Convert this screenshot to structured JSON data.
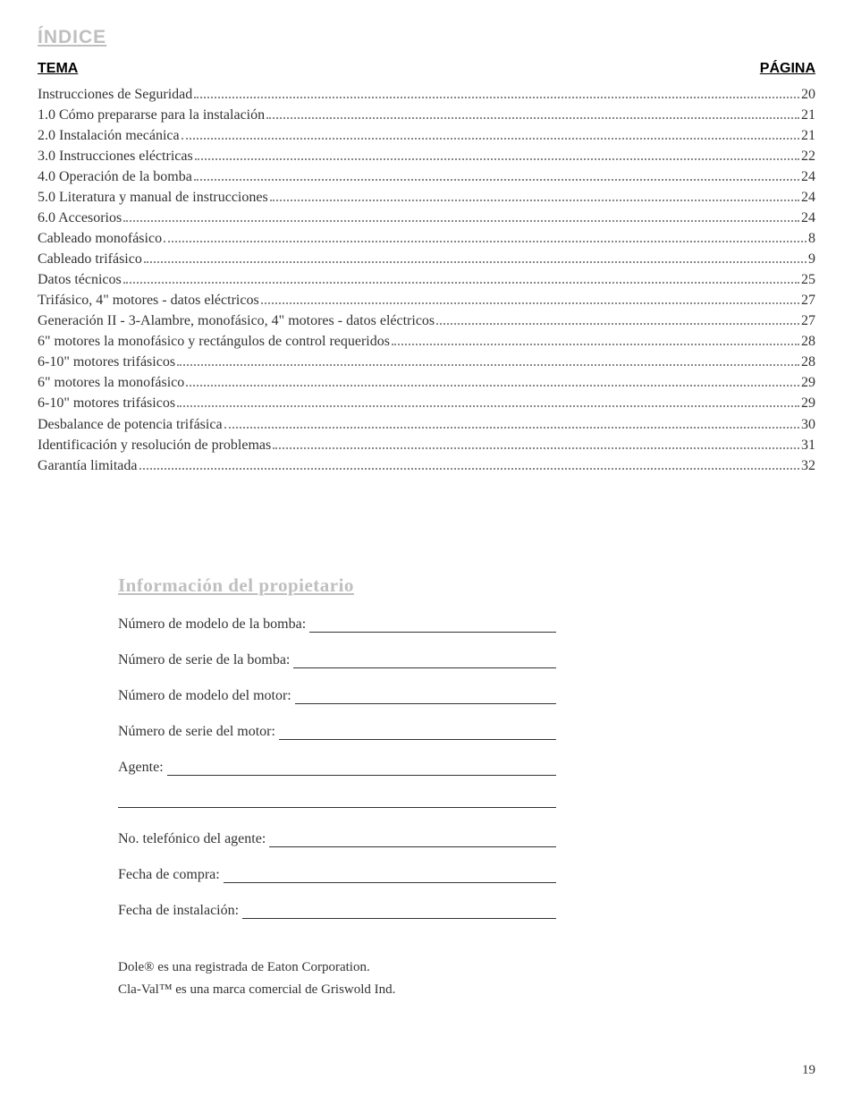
{
  "title": "ÍNDICE",
  "toc_header_left": "TEMA",
  "toc_header_right": "PÁGINA",
  "toc": [
    {
      "label": "Instrucciones de Seguridad",
      "page": "20"
    },
    {
      "label": "1.0 Cómo prepararse para la instalación",
      "page": "21"
    },
    {
      "label": "2.0 Instalación mecánica",
      "page": "21"
    },
    {
      "label": "3.0 Instrucciones eléctricas",
      "page": "22"
    },
    {
      "label": "4.0 Operación de la bomba",
      "page": "24"
    },
    {
      "label": "5.0 Literatura y manual de instrucciones",
      "page": "24"
    },
    {
      "label": "6.0 Accesorios",
      "page": "24"
    },
    {
      "label": "Cableado monofásico",
      "page": "8"
    },
    {
      "label": "Cableado trifásico",
      "page": "9"
    },
    {
      "label": "Datos técnicos",
      "page": "25"
    },
    {
      "label": "Trifásico, 4\" motores - datos eléctricos",
      "page": "27"
    },
    {
      "label": "Generación II - 3-Alambre, monofásico, 4\" motores - datos eléctricos",
      "page": "27"
    },
    {
      "label": "6\" motores la monofásico y rectángulos de control requeridos",
      "page": "28"
    },
    {
      "label": "6-10\" motores trifásicos",
      "page": "28"
    },
    {
      "label": "6\" motores la monofásico",
      "page": "29"
    },
    {
      "label": "6-10\" motores trifásicos",
      "page": "29"
    },
    {
      "label": "Desbalance de potencia trifásica",
      "page": "30"
    },
    {
      "label": "Identificación y resolución de problemas",
      "page": "31"
    },
    {
      "label": "Garantía limitada",
      "page": "32"
    }
  ],
  "owner_section_title": "Información del propietario",
  "owner_fields": {
    "pump_model": "Número de modelo de la bomba:",
    "pump_serial": "Número de serie de la bomba:",
    "motor_model": "Número de modelo del motor:",
    "motor_serial": "Número de serie del motor:",
    "agent": "Agente:",
    "agent_phone": "No. telefónico del agente:",
    "purchase_date": "Fecha de compra:",
    "install_date": "Fecha de instalación:"
  },
  "trademark1": "Dole® es una registrada de Eaton Corporation.",
  "trademark2": "Cla-Val™ es una marca comercial de Griswold Ind.",
  "page_number": "19",
  "colors": {
    "heading_gray": "#bfbfbf",
    "text": "#333333",
    "background": "#ffffff"
  },
  "fonts": {
    "heading": "Arial Black",
    "body": "Georgia",
    "header_labels": "Arial"
  }
}
